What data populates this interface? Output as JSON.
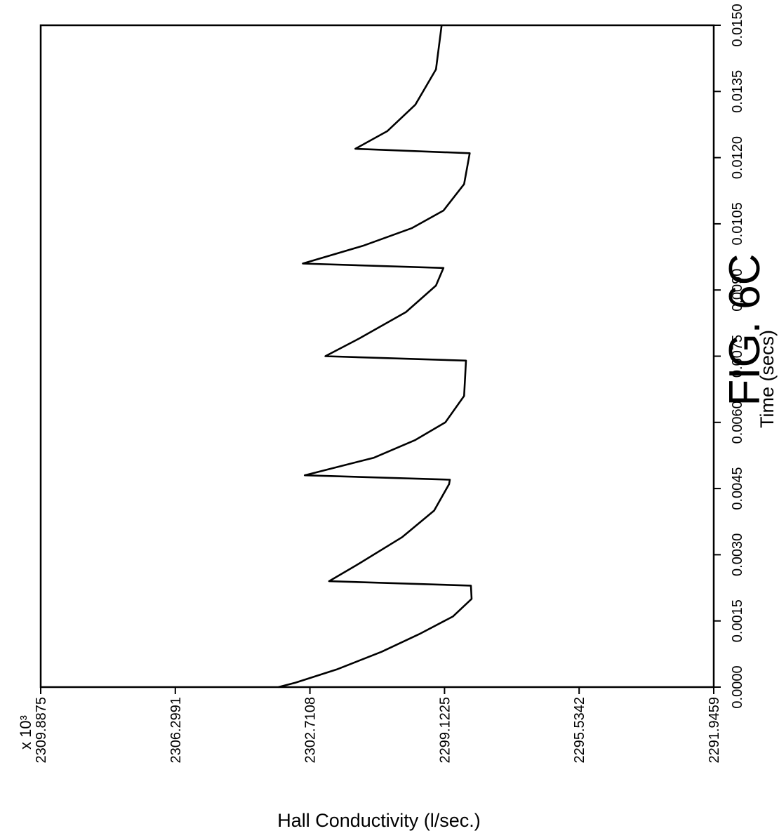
{
  "figure": {
    "title": "FIG. 6C"
  },
  "chart_data": {
    "type": "line",
    "title": "FIG. 6C",
    "xlabel": "Time (secs)",
    "ylabel": "Hall Conductivity (l/sec.)",
    "y_multiplier": "x 10³",
    "orientation": "rotated-90-ccw",
    "xlim": [
      0.0,
      0.015
    ],
    "ylim": [
      2291.9459,
      2309.8875
    ],
    "x_ticks": [
      "0.0000",
      "0.0015",
      "0.0030",
      "0.0045",
      "0.0060",
      "0.0075",
      "0.0090",
      "0.0105",
      "0.0120",
      "0.0135",
      "0.0150"
    ],
    "y_ticks": [
      "2309.8875",
      "2306.2991",
      "2302.7108",
      "2299.1225",
      "2295.5342",
      "2291.9459"
    ],
    "grid": false,
    "legend": "none",
    "series": [
      {
        "values": [
          [
            0.0,
            2303.55
          ],
          [
            0.0001,
            2303.1
          ],
          [
            0.0004,
            2302.0
          ],
          [
            0.0008,
            2300.8
          ],
          [
            0.0012,
            2299.8
          ],
          [
            0.0016,
            2298.9
          ],
          [
            0.002,
            2298.4
          ],
          [
            0.0023,
            2298.42
          ],
          [
            0.0024,
            2302.2
          ],
          [
            0.0028,
            2301.4
          ],
          [
            0.0034,
            2300.25
          ],
          [
            0.004,
            2299.4
          ],
          [
            0.0046,
            2299.0
          ],
          [
            0.0047,
            2298.98
          ],
          [
            0.0048,
            2302.85
          ],
          [
            0.0052,
            2301.0
          ],
          [
            0.0056,
            2299.9
          ],
          [
            0.006,
            2299.1
          ],
          [
            0.0066,
            2298.6
          ],
          [
            0.0074,
            2298.55
          ],
          [
            0.0075,
            2302.3
          ],
          [
            0.0079,
            2301.4
          ],
          [
            0.0085,
            2300.15
          ],
          [
            0.0091,
            2299.35
          ],
          [
            0.0095,
            2299.15
          ],
          [
            0.0096,
            2302.9
          ],
          [
            0.01,
            2301.3
          ],
          [
            0.0104,
            2300.0
          ],
          [
            0.0108,
            2299.15
          ],
          [
            0.0114,
            2298.6
          ],
          [
            0.0121,
            2298.45
          ],
          [
            0.0122,
            2301.5
          ],
          [
            0.0126,
            2300.65
          ],
          [
            0.0132,
            2299.9
          ],
          [
            0.014,
            2299.35
          ],
          [
            0.015,
            2299.2
          ]
        ]
      }
    ]
  }
}
